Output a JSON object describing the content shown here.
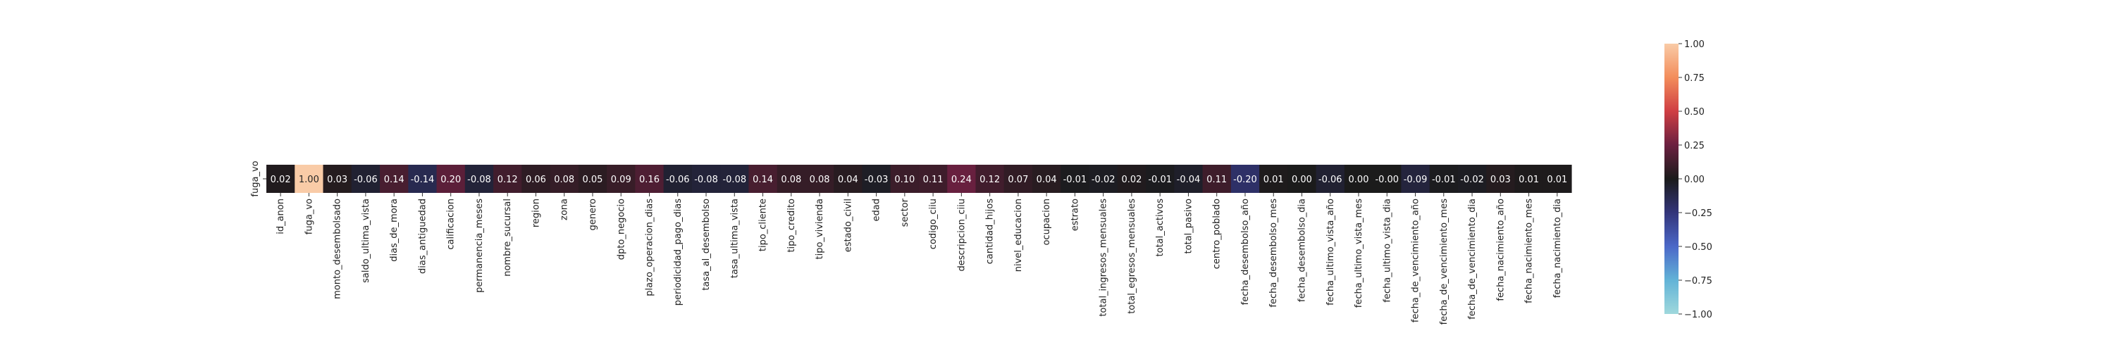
{
  "chart_data": {
    "type": "heatmap",
    "title": "",
    "xlabel": "",
    "ylabel": "",
    "row_labels": [
      "fuga_vo"
    ],
    "categories": [
      "id_anon",
      "fuga_vo",
      "monto_desembolsado",
      "saldo_ultima_vista",
      "dias_de_mora",
      "dias_antiguedad",
      "calificacion",
      "permanencia_meses",
      "nombre_sucursal",
      "region",
      "zona",
      "genero",
      "dpto_negocio",
      "plazo_operacion_dias",
      "periodicidad_pago_dias",
      "tasa_al_desembolso",
      "tasa_ultima_vista",
      "tipo_cliente",
      "tipo_credito",
      "tipo_vivienda",
      "estado_civil",
      "edad",
      "sector",
      "codigo_ciiu",
      "descripcion_ciiu",
      "cantidad_hijos",
      "nivel_educacion",
      "ocupacion",
      "estrato",
      "total_ingresos_mensuales",
      "total_egresos_mensuales",
      "total_activos",
      "total_pasivo",
      "centro_poblado",
      "fecha_desembolso_año",
      "fecha_desembolso_mes",
      "fecha_desembolso_dia",
      "fecha_ultimo_vista_año",
      "fecha_ultimo_vista_mes",
      "fecha_ultimo_vista_dia",
      "fecha_de_vencimiento_año",
      "fecha_de_vencimiento_mes",
      "fecha_de_vencimiento_dia",
      "fecha_nacimiento_año",
      "fecha_nacimiento_mes",
      "fecha_nacimiento_dia"
    ],
    "values": [
      0.02,
      1.0,
      0.03,
      -0.06,
      0.14,
      -0.14,
      0.2,
      -0.08,
      0.12,
      0.06,
      0.08,
      0.05,
      0.09,
      0.16,
      -0.06,
      -0.08,
      -0.08,
      0.14,
      0.08,
      0.08,
      0.04,
      -0.03,
      0.1,
      0.11,
      0.24,
      0.12,
      0.07,
      0.04,
      -0.01,
      -0.02,
      0.02,
      -0.01,
      -0.04,
      0.11,
      -0.2,
      0.01,
      0.0,
      -0.06,
      0.0,
      -0.0,
      -0.09,
      -0.01,
      -0.02,
      0.03,
      0.01,
      0.01
    ],
    "cell_labels": [
      "0.02",
      "1.00",
      "0.03",
      "-0.06",
      "0.14",
      "-0.14",
      "0.20",
      "-0.08",
      "0.12",
      "0.06",
      "0.08",
      "0.05",
      "0.09",
      "0.16",
      "-0.06",
      "-0.08",
      "-0.08",
      "0.14",
      "0.08",
      "0.08",
      "0.04",
      "-0.03",
      "0.10",
      "0.11",
      "0.24",
      "0.12",
      "0.07",
      "0.04",
      "-0.01",
      "-0.02",
      "0.02",
      "-0.01",
      "-0.04",
      "0.11",
      "-0.20",
      "0.01",
      "0.00",
      "-0.06",
      "0.00",
      "-0.00",
      "-0.09",
      "-0.01",
      "-0.02",
      "0.03",
      "0.01",
      "0.01"
    ],
    "vmin": -1.0,
    "vmax": 1.0,
    "colormap": "icefire",
    "colorbar_ticks": [
      1.0,
      0.75,
      0.5,
      0.25,
      0.0,
      -0.25,
      -0.5,
      -0.75,
      -1.0
    ],
    "colorbar_tick_labels": [
      "1.00",
      "0.75",
      "0.50",
      "0.25",
      "0.00",
      "−0.25",
      "−0.50",
      "−0.75",
      "−1.00"
    ]
  }
}
